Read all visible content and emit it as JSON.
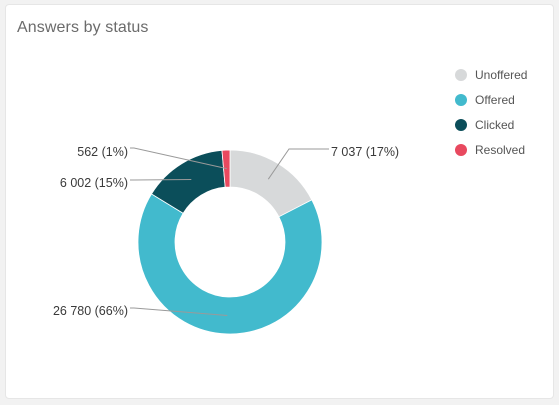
{
  "card": {
    "title": "Answers by status"
  },
  "chart_data": {
    "type": "pie",
    "donut": true,
    "title": "Answers by status",
    "legend_position": "top-right",
    "series": [
      {
        "name": "Unoffered",
        "value": 7037,
        "percent": 17,
        "label": "7 037 (17%)",
        "color": "#d7d9da"
      },
      {
        "name": "Offered",
        "value": 26780,
        "percent": 66,
        "label": "26 780 (66%)",
        "color": "#42bacd"
      },
      {
        "name": "Clicked",
        "value": 6002,
        "percent": 15,
        "label": "6 002 (15%)",
        "color": "#0b4e5a"
      },
      {
        "name": "Resolved",
        "value": 562,
        "percent": 1,
        "label": "562 (1%)",
        "color": "#e8495f"
      }
    ]
  }
}
